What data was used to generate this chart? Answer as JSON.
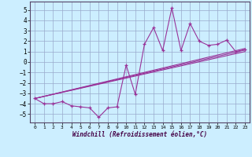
{
  "x": [
    0,
    1,
    2,
    3,
    4,
    5,
    6,
    7,
    8,
    9,
    10,
    11,
    12,
    13,
    14,
    15,
    16,
    17,
    18,
    19,
    20,
    21,
    22,
    23
  ],
  "y_line": [
    -3.5,
    -4.0,
    -4.0,
    -3.8,
    -4.2,
    -4.3,
    -4.4,
    -5.3,
    -4.4,
    -4.3,
    -0.3,
    -3.1,
    1.7,
    3.3,
    1.1,
    5.2,
    1.1,
    3.7,
    2.0,
    1.6,
    1.7,
    2.1,
    1.0,
    1.2
  ],
  "trend1_x": [
    0,
    23
  ],
  "trend1_y": [
    -3.5,
    1.0
  ],
  "trend2_x": [
    0,
    23
  ],
  "trend2_y": [
    -3.5,
    1.15
  ],
  "trend3_x": [
    0,
    23
  ],
  "trend3_y": [
    -3.5,
    1.3
  ],
  "line_color": "#993399",
  "bg_color": "#cceeff",
  "grid_color": "#99aacc",
  "xlabel": "Windchill (Refroidissement éolien,°C)",
  "ylabel_ticks": [
    -5,
    -4,
    -3,
    -2,
    -1,
    0,
    1,
    2,
    3,
    4,
    5
  ],
  "xlim": [
    -0.5,
    23.5
  ],
  "ylim": [
    -5.8,
    5.8
  ],
  "xticks": [
    0,
    1,
    2,
    3,
    4,
    5,
    6,
    7,
    8,
    9,
    10,
    11,
    12,
    13,
    14,
    15,
    16,
    17,
    18,
    19,
    20,
    21,
    22,
    23
  ]
}
